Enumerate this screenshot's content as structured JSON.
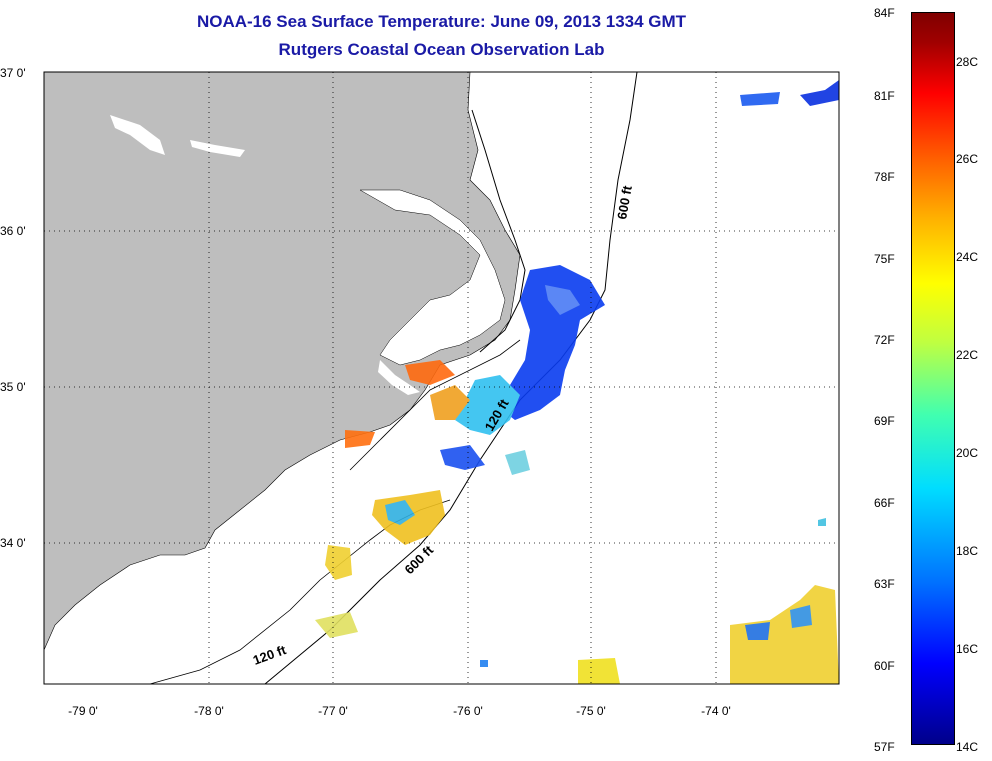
{
  "title": "NOAA-16 Sea Surface Temperature:  June 09, 2013 1334 GMT",
  "subtitle": "Rutgers Coastal Ocean Observation Lab",
  "lat_labels": [
    "37 0'",
    "36 0'",
    "35 0'",
    "34 0'"
  ],
  "lon_labels": [
    "-79 0'",
    "-78 0'",
    "-77 0'",
    "-76 0'",
    "-75 0'",
    "-74 0'"
  ],
  "isobath_labels": {
    "shelf_north": "600 ft",
    "shelf_south": "600 ft",
    "inner": "120 ft",
    "inner_mid": "120 ft"
  },
  "colorbar": {
    "f_labels": [
      "84F",
      "81F",
      "78F",
      "75F",
      "72F",
      "69F",
      "66F",
      "63F",
      "60F",
      "57F"
    ],
    "c_labels": [
      "28C",
      "26C",
      "24C",
      "22C",
      "20C",
      "18C",
      "16C",
      "14C"
    ]
  },
  "colors": {
    "land": "#bebebe",
    "title": "#1a1aa6"
  }
}
